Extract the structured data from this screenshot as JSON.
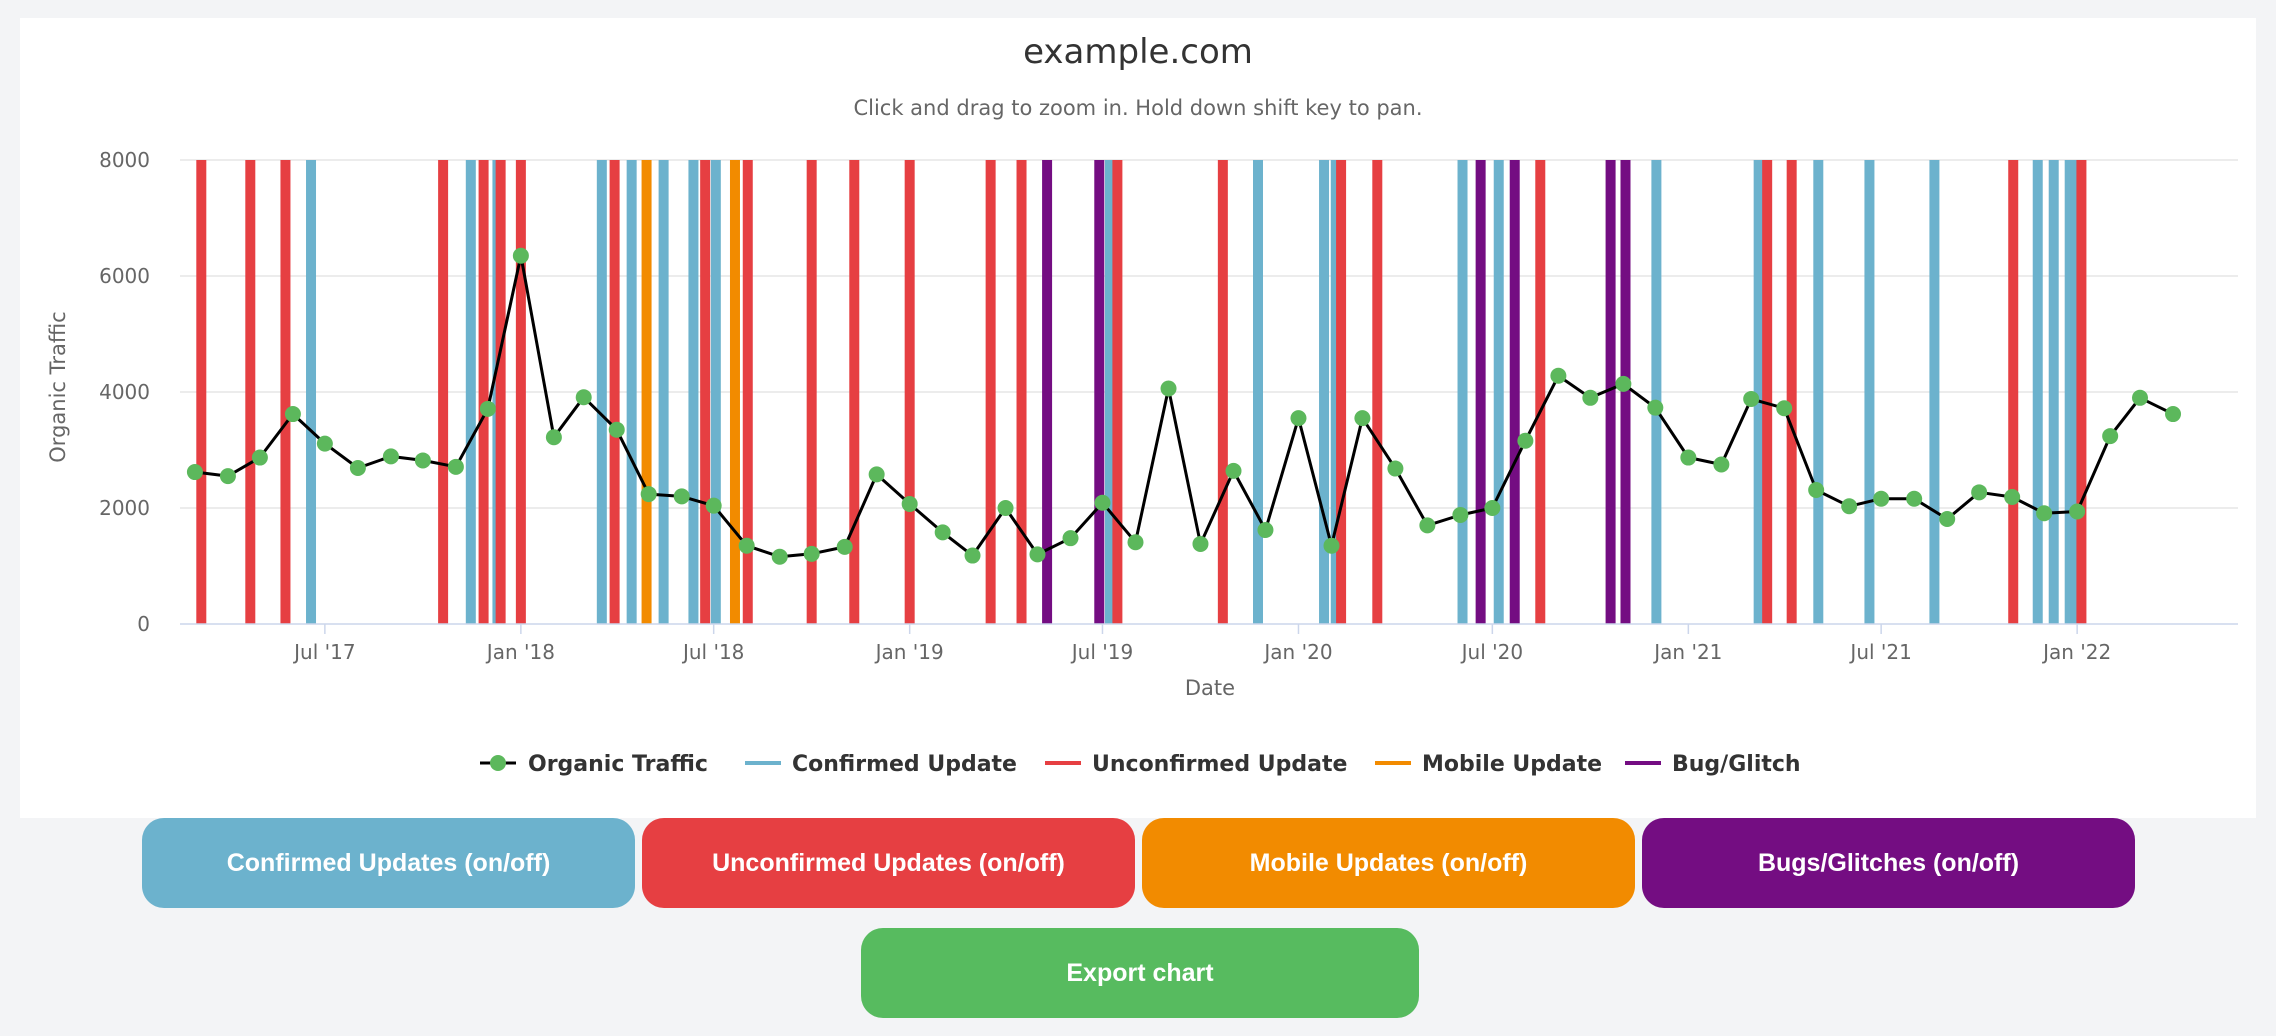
{
  "chart_data": {
    "type": "line",
    "title": "example.com",
    "subtitle": "Click and drag to zoom in. Hold down shift key to pan.",
    "xlabel": "Date",
    "ylabel": "Organic Traffic",
    "ylim": [
      0,
      8000
    ],
    "yticks": [
      0,
      2000,
      4000,
      6000,
      8000
    ],
    "xticks": [
      "2017-07-01",
      "2018-01-01",
      "2018-07-01",
      "2019-01-01",
      "2019-07-01",
      "2020-01-01",
      "2020-07-01",
      "2021-01-01",
      "2021-07-01",
      "2022-01-01"
    ],
    "xtick_labels": [
      "Jul '17",
      "Jan '18",
      "Jul '18",
      "Jan '19",
      "Jul '19",
      "Jan '20",
      "Jul '20",
      "Jan '21",
      "Jul '21",
      "Jan '22"
    ],
    "xlim": [
      "2017-02-15",
      "2022-06-01"
    ],
    "grid": true,
    "legend_position": "bottom-center",
    "legend": [
      "Organic Traffic",
      "Confirmed Update",
      "Unconfirmed Update",
      "Mobile Update",
      "Bug/Glitch"
    ],
    "colors": {
      "organic_line": "#000000",
      "organic_marker": "#5cb85c",
      "confirmed": "#6cb2cd",
      "unconfirmed": "#e63f42",
      "mobile": "#f28b00",
      "bug": "#740d82",
      "grid": "#e6e6e6"
    },
    "series": [
      {
        "name": "Organic Traffic",
        "x": [
          "2017-03-01",
          "2017-04-01",
          "2017-05-01",
          "2017-06-01",
          "2017-07-01",
          "2017-08-01",
          "2017-09-01",
          "2017-10-01",
          "2017-11-01",
          "2017-12-01",
          "2018-01-01",
          "2018-02-01",
          "2018-03-01",
          "2018-04-01",
          "2018-05-01",
          "2018-06-01",
          "2018-07-01",
          "2018-08-01",
          "2018-09-01",
          "2018-10-01",
          "2018-11-01",
          "2018-12-01",
          "2019-01-01",
          "2019-02-01",
          "2019-03-01",
          "2019-04-01",
          "2019-05-01",
          "2019-06-01",
          "2019-07-01",
          "2019-08-01",
          "2019-09-01",
          "2019-10-01",
          "2019-11-01",
          "2019-12-01",
          "2020-01-01",
          "2020-02-01",
          "2020-03-01",
          "2020-04-01",
          "2020-05-01",
          "2020-06-01",
          "2020-07-01",
          "2020-08-01",
          "2020-09-01",
          "2020-10-01",
          "2020-11-01",
          "2020-12-01",
          "2021-01-01",
          "2021-02-01",
          "2021-03-01",
          "2021-04-01",
          "2021-05-01",
          "2021-06-01",
          "2021-07-01",
          "2021-08-01",
          "2021-09-01",
          "2021-10-01",
          "2021-11-01",
          "2021-12-01",
          "2022-01-01",
          "2022-02-01",
          "2022-03-01",
          "2022-04-01"
        ],
        "values": [
          2620,
          2550,
          2870,
          3620,
          3110,
          2690,
          2890,
          2820,
          2710,
          3710,
          6350,
          3220,
          3910,
          3350,
          2240,
          2200,
          2040,
          1350,
          1160,
          1210,
          1330,
          2580,
          2070,
          1580,
          1180,
          2000,
          1200,
          1480,
          2090,
          1410,
          4060,
          1380,
          2640,
          1620,
          3550,
          1350,
          3550,
          2680,
          1700,
          1880,
          2000,
          3160,
          4280,
          3900,
          4140,
          3730,
          2870,
          2750,
          3880,
          3720,
          2310,
          2030,
          2160,
          2160,
          1810,
          2270,
          2190,
          1910,
          1940,
          3240,
          3900,
          3620
        ]
      }
    ],
    "events": {
      "confirmed": [
        "2017-06-18",
        "2017-11-15",
        "2017-12-10",
        "2018-03-18",
        "2018-04-15",
        "2018-05-15",
        "2018-06-12",
        "2018-07-03",
        "2019-07-08",
        "2019-11-24",
        "2020-01-25",
        "2020-02-05",
        "2020-06-03",
        "2020-07-07",
        "2020-12-02",
        "2021-03-08",
        "2021-05-03",
        "2021-08-20",
        "2021-06-20",
        "2021-11-25",
        "2021-12-10",
        "2021-12-25",
        "2022-01-02",
        "2021-12-29"
      ],
      "unconfirmed": [
        "2017-03-07",
        "2017-04-22",
        "2017-05-25",
        "2017-10-20",
        "2017-11-27",
        "2017-12-13",
        "2018-01-01",
        "2018-03-30",
        "2018-06-23",
        "2018-08-02",
        "2018-10-01",
        "2018-11-10",
        "2019-01-01",
        "2019-03-18",
        "2019-04-16",
        "2019-07-15",
        "2019-10-22",
        "2020-02-10",
        "2020-03-15",
        "2020-08-15",
        "2021-03-16",
        "2021-04-08",
        "2021-11-02",
        "2022-01-05"
      ],
      "mobile": [
        "2018-04-29",
        "2018-07-21"
      ],
      "bug": [
        "2019-05-10",
        "2019-06-28",
        "2020-06-20",
        "2020-07-22",
        "2020-10-20",
        "2020-11-03"
      ]
    }
  },
  "buttons": {
    "confirmed": "Confirmed Updates (on/off)",
    "unconfirmed": "Unconfirmed Updates (on/off)",
    "mobile": "Mobile Updates (on/off)",
    "bugs": "Bugs/Glitches (on/off)",
    "export": "Export chart"
  }
}
